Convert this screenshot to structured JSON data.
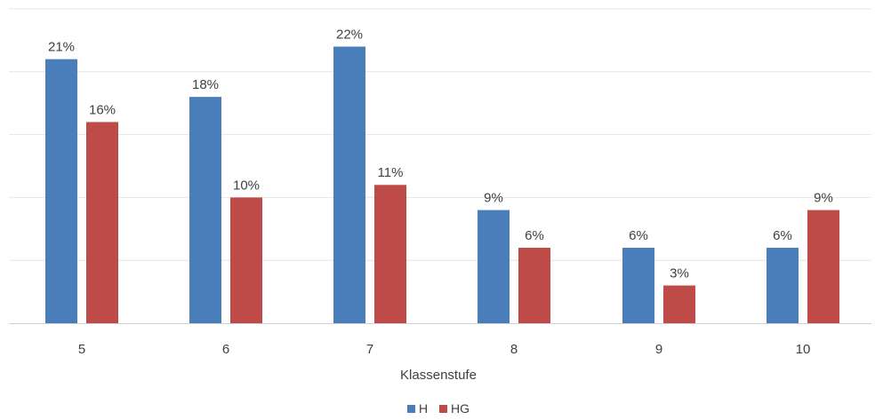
{
  "chart_data": {
    "type": "bar",
    "categories": [
      "5",
      "6",
      "7",
      "8",
      "9",
      "10"
    ],
    "series": [
      {
        "name": "H",
        "values": [
          21,
          18,
          22,
          9,
          6,
          6
        ],
        "labels": [
          "21%",
          "18%",
          "22%",
          "9%",
          "6%",
          "6%"
        ],
        "color": "#4a7ebb"
      },
      {
        "name": "HG",
        "values": [
          16,
          10,
          11,
          6,
          3,
          9
        ],
        "labels": [
          "16%",
          "10%",
          "11%",
          "6%",
          "3%",
          "9%"
        ],
        "color": "#be4b48"
      }
    ],
    "title": "",
    "xlabel": "Klassenstufe",
    "ylabel": "",
    "ylim": [
      0,
      25
    ],
    "grid": true,
    "legend": "bottom"
  }
}
